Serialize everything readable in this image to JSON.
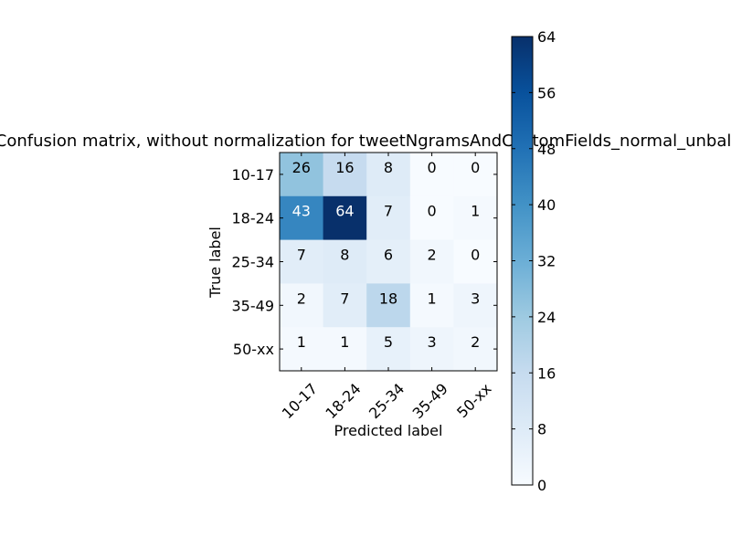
{
  "chart_data": {
    "type": "heatmap",
    "title": "Confusion matrix, without normalization for tweetNgramsAndCustomFields_normal_unbalanced",
    "xlabel": "Predicted label",
    "ylabel": "True label",
    "x_categories": [
      "10-17",
      "18-24",
      "25-34",
      "35-49",
      "50-xx"
    ],
    "y_categories": [
      "10-17",
      "18-24",
      "25-34",
      "35-49",
      "50-xx"
    ],
    "matrix": [
      [
        26,
        16,
        8,
        0,
        0
      ],
      [
        43,
        64,
        7,
        0,
        1
      ],
      [
        7,
        8,
        6,
        2,
        0
      ],
      [
        2,
        7,
        18,
        1,
        3
      ],
      [
        1,
        1,
        5,
        3,
        2
      ]
    ],
    "colormap": "Blues",
    "colorbar": {
      "range": [
        0,
        64
      ],
      "ticks": [
        "0",
        "8",
        "16",
        "24",
        "32",
        "40",
        "48",
        "56",
        "64"
      ]
    },
    "grid": false
  }
}
